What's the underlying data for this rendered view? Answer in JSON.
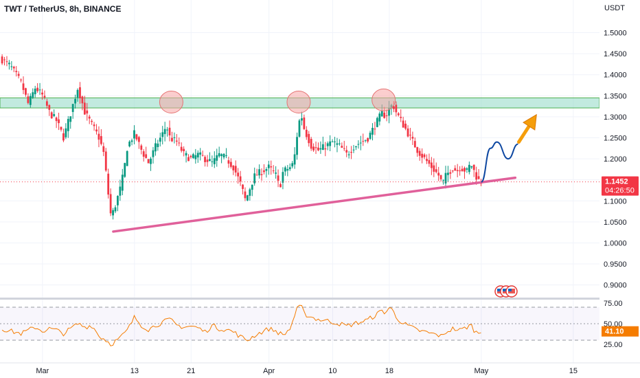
{
  "header": {
    "symbol_title": "TWT / TetherUS, 8h, BINANCE",
    "currency": "USDT"
  },
  "price_axis": {
    "ticks": [
      "1.5000",
      "1.4500",
      "1.4000",
      "1.3500",
      "1.3000",
      "1.2500",
      "1.2000",
      "1.1500",
      "1.1000",
      "1.0500",
      "1.0000",
      "0.9500",
      "0.9000"
    ],
    "tick_values": [
      1.5,
      1.45,
      1.4,
      1.35,
      1.3,
      1.25,
      1.2,
      1.15,
      1.1,
      1.05,
      1.0,
      0.95,
      0.9
    ],
    "last_price": "1.1452",
    "countdown": "04:26:50",
    "last_price_color": "#f23645"
  },
  "rsi_axis": {
    "ticks": [
      "75.00",
      "50.00",
      "25.00"
    ],
    "tick_values": [
      75,
      50,
      25
    ],
    "current": "41.10",
    "current_color": "#f57c00"
  },
  "time_axis": {
    "labels": [
      "Mar",
      "13",
      "21",
      "Apr",
      "10",
      "18",
      "May",
      "15"
    ],
    "label_days": [
      0,
      13,
      21,
      32,
      41,
      49,
      62,
      75
    ]
  },
  "chart_data": {
    "type": "candlestick",
    "title": "TWT / TetherUS, 8h, BINANCE",
    "ylim": [
      0.87,
      1.545
    ],
    "x_unit": "days from Mar 1",
    "xlim": [
      -6,
      78.7
    ],
    "colors": {
      "up": "#089981",
      "down": "#f23645",
      "rsi": "#f57c00",
      "trendline": "#e0609a",
      "resistance_zone": "#8fd9c4"
    },
    "price_path": [
      [
        -6,
        1.44
      ],
      [
        -4.5,
        1.42
      ],
      [
        -3,
        1.38
      ],
      [
        -2,
        1.33
      ],
      [
        -1,
        1.37
      ],
      [
        0,
        1.35
      ],
      [
        1,
        1.31
      ],
      [
        2,
        1.29
      ],
      [
        3,
        1.25
      ],
      [
        4,
        1.31
      ],
      [
        5,
        1.37
      ],
      [
        6,
        1.31
      ],
      [
        7,
        1.28
      ],
      [
        8,
        1.25
      ],
      [
        8.7,
        1.21
      ],
      [
        9.2,
        1.13
      ],
      [
        9.7,
        1.06
      ],
      [
        10.3,
        1.09
      ],
      [
        11,
        1.13
      ],
      [
        11.5,
        1.17
      ],
      [
        12,
        1.23
      ],
      [
        13,
        1.26
      ],
      [
        14,
        1.22
      ],
      [
        15,
        1.19
      ],
      [
        16,
        1.23
      ],
      [
        17,
        1.26
      ],
      [
        17.5,
        1.28
      ],
      [
        18,
        1.25
      ],
      [
        19,
        1.24
      ],
      [
        20,
        1.21
      ],
      [
        21,
        1.2
      ],
      [
        22,
        1.21
      ],
      [
        23,
        1.2
      ],
      [
        24,
        1.19
      ],
      [
        25,
        1.21
      ],
      [
        26,
        1.2
      ],
      [
        27,
        1.18
      ],
      [
        28,
        1.14
      ],
      [
        28.7,
        1.1
      ],
      [
        29.5,
        1.14
      ],
      [
        30,
        1.16
      ],
      [
        31,
        1.17
      ],
      [
        32,
        1.18
      ],
      [
        33,
        1.16
      ],
      [
        33.5,
        1.13
      ],
      [
        34,
        1.17
      ],
      [
        35,
        1.18
      ],
      [
        35.5,
        1.19
      ],
      [
        36,
        1.26
      ],
      [
        36.5,
        1.31
      ],
      [
        37,
        1.27
      ],
      [
        38,
        1.23
      ],
      [
        39,
        1.22
      ],
      [
        40,
        1.23
      ],
      [
        41,
        1.24
      ],
      [
        42,
        1.23
      ],
      [
        43,
        1.21
      ],
      [
        44,
        1.23
      ],
      [
        45,
        1.24
      ],
      [
        46,
        1.25
      ],
      [
        47,
        1.28
      ],
      [
        48,
        1.31
      ],
      [
        48.5,
        1.3
      ],
      [
        49,
        1.32
      ],
      [
        49.5,
        1.33
      ],
      [
        50,
        1.31
      ],
      [
        51,
        1.28
      ],
      [
        52,
        1.25
      ],
      [
        53,
        1.22
      ],
      [
        54,
        1.2
      ],
      [
        55,
        1.18
      ],
      [
        56,
        1.16
      ],
      [
        56.5,
        1.14
      ],
      [
        57,
        1.16
      ],
      [
        58,
        1.18
      ],
      [
        58.5,
        1.17
      ],
      [
        59,
        1.18
      ],
      [
        60,
        1.17
      ],
      [
        60.5,
        1.19
      ],
      [
        61,
        1.17
      ],
      [
        61.5,
        1.15
      ],
      [
        62,
        1.145
      ]
    ],
    "rsi_path": [
      [
        -6,
        45
      ],
      [
        -5,
        42
      ],
      [
        -4,
        40
      ],
      [
        -3,
        38
      ],
      [
        -2,
        42
      ],
      [
        -1,
        46
      ],
      [
        0,
        41
      ],
      [
        1,
        44
      ],
      [
        2,
        42
      ],
      [
        3,
        38
      ],
      [
        4,
        44
      ],
      [
        5,
        50
      ],
      [
        6,
        46
      ],
      [
        7,
        48
      ],
      [
        8,
        35
      ],
      [
        9,
        30
      ],
      [
        9.7,
        25
      ],
      [
        10,
        27
      ],
      [
        11,
        33
      ],
      [
        12,
        42
      ],
      [
        13,
        58
      ],
      [
        14,
        48
      ],
      [
        15,
        43
      ],
      [
        16,
        48
      ],
      [
        17,
        52
      ],
      [
        18,
        55
      ],
      [
        19,
        48
      ],
      [
        20,
        46
      ],
      [
        21,
        47
      ],
      [
        22,
        45
      ],
      [
        23,
        40
      ],
      [
        24,
        48
      ],
      [
        25,
        44
      ],
      [
        26,
        43
      ],
      [
        27,
        40
      ],
      [
        28,
        34
      ],
      [
        29,
        30
      ],
      [
        30,
        36
      ],
      [
        31,
        40
      ],
      [
        32,
        44
      ],
      [
        33,
        41
      ],
      [
        34,
        36
      ],
      [
        35,
        44
      ],
      [
        35.5,
        57
      ],
      [
        36,
        68
      ],
      [
        36.5,
        72
      ],
      [
        37,
        62
      ],
      [
        38,
        58
      ],
      [
        39,
        55
      ],
      [
        40,
        54
      ],
      [
        41,
        52
      ],
      [
        42,
        50
      ],
      [
        43,
        47
      ],
      [
        44,
        50
      ],
      [
        45,
        52
      ],
      [
        46,
        55
      ],
      [
        47,
        60
      ],
      [
        48,
        66
      ],
      [
        48.5,
        63
      ],
      [
        49,
        70
      ],
      [
        49.5,
        66
      ],
      [
        50,
        58
      ],
      [
        51,
        50
      ],
      [
        52,
        46
      ],
      [
        53,
        42
      ],
      [
        54,
        40
      ],
      [
        55,
        38
      ],
      [
        56,
        36
      ],
      [
        56.5,
        34
      ],
      [
        57,
        40
      ],
      [
        58,
        44
      ],
      [
        59,
        42
      ],
      [
        60,
        46
      ],
      [
        60.5,
        49
      ],
      [
        61,
        42
      ],
      [
        61.5,
        38
      ],
      [
        62,
        41.1
      ]
    ],
    "trendline": {
      "from": [
        10,
        1.027
      ],
      "to": [
        66.8,
        1.155
      ]
    },
    "resistance_zone": [
      1.321,
      1.345
    ],
    "circled_peaks": [
      [
        18.2,
        1.335
      ],
      [
        36.2,
        1.335
      ],
      [
        48.2,
        1.34
      ]
    ],
    "projection_path": [
      [
        62,
        1.145
      ],
      [
        63.3,
        1.225
      ],
      [
        64.2,
        1.24
      ],
      [
        65.8,
        1.2
      ],
      [
        67.2,
        1.235
      ]
    ],
    "projection_arrow": {
      "from": [
        67.3,
        1.24
      ],
      "to": [
        69.8,
        1.305
      ]
    },
    "rsi_levels": [
      70,
      50,
      30
    ]
  }
}
